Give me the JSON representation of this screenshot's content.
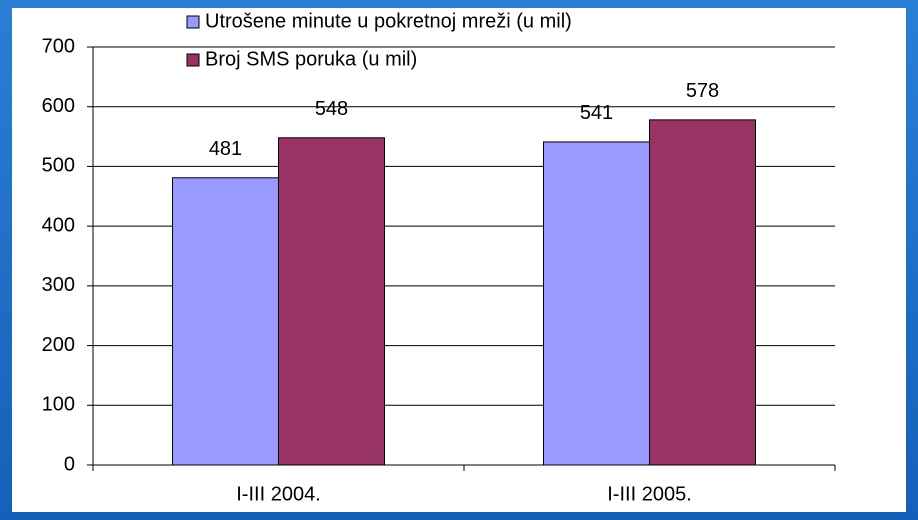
{
  "chart_data": {
    "type": "bar",
    "categories": [
      "I-III 2004.",
      "I-III 2005."
    ],
    "series": [
      {
        "name": "Utrošene minute u pokretnoj mreži (u mil)",
        "color": "#9999ff",
        "values": [
          481,
          541
        ]
      },
      {
        "name": "Broj SMS poruka (u mil)",
        "color": "#993366",
        "values": [
          548,
          578
        ]
      }
    ],
    "ylim": [
      0,
      700
    ],
    "yticks": [
      0,
      100,
      200,
      300,
      400,
      500,
      600,
      700
    ],
    "grid": true,
    "legend": "top"
  }
}
